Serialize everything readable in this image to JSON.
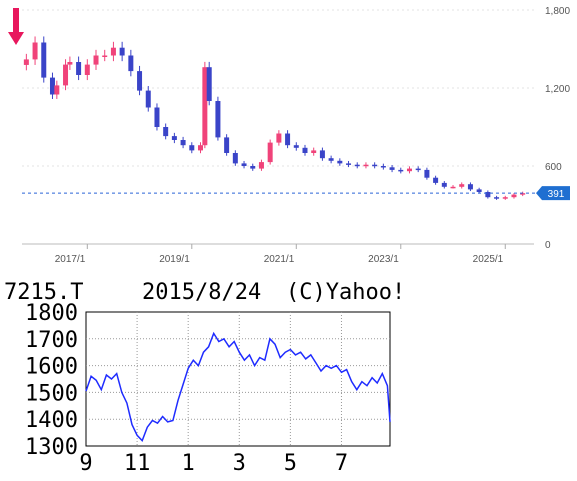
{
  "chart_data": [
    {
      "type": "candlestick",
      "y_ticks": [
        "1,800",
        "1,200",
        "600",
        "0"
      ],
      "x_ticks": [
        "2017/1",
        "2019/1",
        "2021/1",
        "2023/1",
        "2025/1"
      ],
      "ylim": [
        0,
        1800
      ],
      "grid": true,
      "current_price_label": "391",
      "current_price": 391,
      "colors": {
        "up": "#f0437a",
        "down": "#3a44c8",
        "last_badge": "#1f6fd1",
        "current_line": "#2a63d8",
        "arrow": "#e8175d"
      },
      "series": [
        {
          "x": "2015/11",
          "y": 1420
        },
        {
          "x": "2016/1",
          "y": 1550
        },
        {
          "x": "2016/3",
          "y": 1280
        },
        {
          "x": "2016/5",
          "y": 1150
        },
        {
          "x": "2016/6",
          "y": 1220
        },
        {
          "x": "2016/8",
          "y": 1380
        },
        {
          "x": "2016/9",
          "y": 1400
        },
        {
          "x": "2016/11",
          "y": 1300
        },
        {
          "x": "2017/1",
          "y": 1380
        },
        {
          "x": "2017/3",
          "y": 1450
        },
        {
          "x": "2017/5",
          "y": 1450
        },
        {
          "x": "2017/7",
          "y": 1510
        },
        {
          "x": "2017/9",
          "y": 1450
        },
        {
          "x": "2017/11",
          "y": 1330
        },
        {
          "x": "2018/1",
          "y": 1180
        },
        {
          "x": "2018/3",
          "y": 1050
        },
        {
          "x": "2018/5",
          "y": 900
        },
        {
          "x": "2018/7",
          "y": 830
        },
        {
          "x": "2018/9",
          "y": 800
        },
        {
          "x": "2018/11",
          "y": 760
        },
        {
          "x": "2019/1",
          "y": 720
        },
        {
          "x": "2019/3",
          "y": 760
        },
        {
          "x": "2019/4",
          "y": 1360
        },
        {
          "x": "2019/5",
          "y": 1100
        },
        {
          "x": "2019/7",
          "y": 820
        },
        {
          "x": "2019/9",
          "y": 700
        },
        {
          "x": "2019/11",
          "y": 620
        },
        {
          "x": "2020/1",
          "y": 600
        },
        {
          "x": "2020/3",
          "y": 580
        },
        {
          "x": "2020/5",
          "y": 630
        },
        {
          "x": "2020/7",
          "y": 780
        },
        {
          "x": "2020/9",
          "y": 850
        },
        {
          "x": "2020/11",
          "y": 760
        },
        {
          "x": "2021/1",
          "y": 740
        },
        {
          "x": "2021/3",
          "y": 700
        },
        {
          "x": "2021/5",
          "y": 720
        },
        {
          "x": "2021/7",
          "y": 660
        },
        {
          "x": "2021/9",
          "y": 640
        },
        {
          "x": "2021/11",
          "y": 620
        },
        {
          "x": "2022/1",
          "y": 610
        },
        {
          "x": "2022/3",
          "y": 600
        },
        {
          "x": "2022/5",
          "y": 610
        },
        {
          "x": "2022/7",
          "y": 600
        },
        {
          "x": "2022/9",
          "y": 590
        },
        {
          "x": "2022/11",
          "y": 570
        },
        {
          "x": "2023/1",
          "y": 560
        },
        {
          "x": "2023/3",
          "y": 580
        },
        {
          "x": "2023/5",
          "y": 570
        },
        {
          "x": "2023/7",
          "y": 510
        },
        {
          "x": "2023/9",
          "y": 470
        },
        {
          "x": "2023/11",
          "y": 440
        },
        {
          "x": "2024/1",
          "y": 440
        },
        {
          "x": "2024/3",
          "y": 460
        },
        {
          "x": "2024/5",
          "y": 420
        },
        {
          "x": "2024/7",
          "y": 400
        },
        {
          "x": "2024/9",
          "y": 360
        },
        {
          "x": "2024/11",
          "y": 350
        },
        {
          "x": "2025/1",
          "y": 360
        },
        {
          "x": "2025/3",
          "y": 380
        },
        {
          "x": "2025/5",
          "y": 391
        }
      ]
    },
    {
      "type": "line",
      "header": {
        "code": "7215.T",
        "date": "2015/8/24",
        "credit": "(C)Yahoo!"
      },
      "y_ticks": [
        "1800",
        "1700",
        "1600",
        "1500",
        "1400",
        "1300"
      ],
      "x_ticks": [
        "9",
        "11",
        "1",
        "3",
        "5",
        "7"
      ],
      "ylim": [
        1300,
        1800
      ],
      "grid": true,
      "line_color": "#1f2cff",
      "series": [
        {
          "t": 0,
          "y": 1505
        },
        {
          "t": 2,
          "y": 1560
        },
        {
          "t": 4,
          "y": 1545
        },
        {
          "t": 6,
          "y": 1510
        },
        {
          "t": 8,
          "y": 1565
        },
        {
          "t": 10,
          "y": 1550
        },
        {
          "t": 12,
          "y": 1570
        },
        {
          "t": 14,
          "y": 1500
        },
        {
          "t": 16,
          "y": 1460
        },
        {
          "t": 18,
          "y": 1380
        },
        {
          "t": 20,
          "y": 1340
        },
        {
          "t": 22,
          "y": 1320
        },
        {
          "t": 24,
          "y": 1370
        },
        {
          "t": 26,
          "y": 1395
        },
        {
          "t": 28,
          "y": 1385
        },
        {
          "t": 30,
          "y": 1410
        },
        {
          "t": 32,
          "y": 1390
        },
        {
          "t": 34,
          "y": 1395
        },
        {
          "t": 36,
          "y": 1470
        },
        {
          "t": 38,
          "y": 1530
        },
        {
          "t": 40,
          "y": 1590
        },
        {
          "t": 42,
          "y": 1620
        },
        {
          "t": 44,
          "y": 1600
        },
        {
          "t": 46,
          "y": 1650
        },
        {
          "t": 48,
          "y": 1670
        },
        {
          "t": 50,
          "y": 1720
        },
        {
          "t": 52,
          "y": 1690
        },
        {
          "t": 54,
          "y": 1700
        },
        {
          "t": 56,
          "y": 1670
        },
        {
          "t": 58,
          "y": 1690
        },
        {
          "t": 60,
          "y": 1650
        },
        {
          "t": 62,
          "y": 1620
        },
        {
          "t": 64,
          "y": 1640
        },
        {
          "t": 66,
          "y": 1600
        },
        {
          "t": 68,
          "y": 1630
        },
        {
          "t": 70,
          "y": 1620
        },
        {
          "t": 72,
          "y": 1700
        },
        {
          "t": 74,
          "y": 1680
        },
        {
          "t": 76,
          "y": 1630
        },
        {
          "t": 78,
          "y": 1650
        },
        {
          "t": 80,
          "y": 1660
        },
        {
          "t": 82,
          "y": 1640
        },
        {
          "t": 84,
          "y": 1650
        },
        {
          "t": 86,
          "y": 1625
        },
        {
          "t": 88,
          "y": 1640
        },
        {
          "t": 90,
          "y": 1610
        },
        {
          "t": 92,
          "y": 1580
        },
        {
          "t": 94,
          "y": 1600
        },
        {
          "t": 96,
          "y": 1590
        },
        {
          "t": 98,
          "y": 1600
        },
        {
          "t": 100,
          "y": 1575
        },
        {
          "t": 102,
          "y": 1585
        },
        {
          "t": 104,
          "y": 1540
        },
        {
          "t": 106,
          "y": 1510
        },
        {
          "t": 108,
          "y": 1540
        },
        {
          "t": 110,
          "y": 1525
        },
        {
          "t": 112,
          "y": 1555
        },
        {
          "t": 114,
          "y": 1535
        },
        {
          "t": 116,
          "y": 1570
        },
        {
          "t": 118,
          "y": 1525
        },
        {
          "t": 119,
          "y": 1390
        }
      ]
    }
  ]
}
